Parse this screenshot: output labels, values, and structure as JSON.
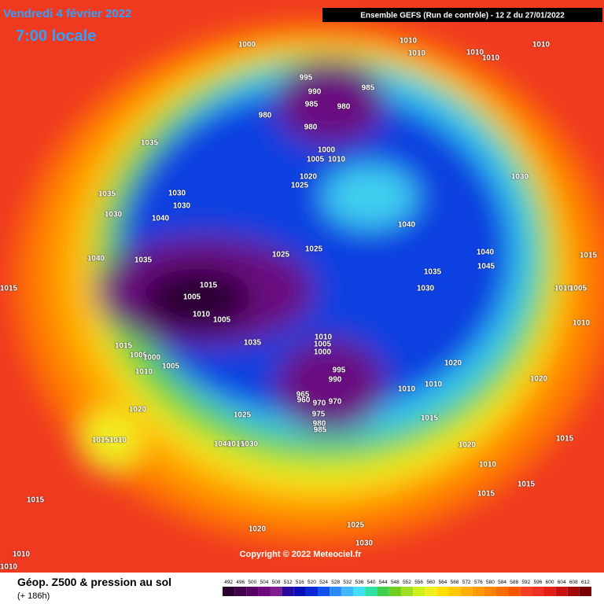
{
  "header": {
    "date": "Vendredi 4 février 2022",
    "time": "7:00 locale",
    "run": "Ensemble GEFS  (Run de contrôle)  -  12 Z du 27/01/2022"
  },
  "map": {
    "copyright": "Copyright © 2022 Meteociel.fr",
    "isobar_labels": [
      1000,
      1010,
      1010,
      1010,
      1010,
      1010,
      995,
      985,
      990,
      985,
      980,
      980,
      980,
      1000,
      1005,
      1010,
      1020,
      1025,
      1035,
      1035,
      1030,
      1030,
      1030,
      1040,
      1030,
      1040,
      1040,
      1045,
      1015,
      1025,
      1025,
      1035,
      1040,
      1015,
      1015,
      1005,
      1010,
      1005,
      1035,
      1030,
      1010,
      1005,
      1010,
      1035,
      1010,
      1005,
      1000,
      995,
      990,
      965,
      960,
      970,
      970,
      975,
      980,
      985,
      1015,
      1005,
      1000,
      1010,
      1005,
      1020,
      1020,
      1010,
      1010,
      1025,
      1015,
      1020,
      1015,
      1010,
      1040,
      1015,
      1030,
      1020,
      1015,
      1010,
      1015,
      1015,
      1015,
      1020,
      1025,
      1030,
      1010,
      1010
    ]
  },
  "legend": {
    "title": "Géop. Z500 & pression au sol",
    "lead": "(+ 186h)",
    "scale": [
      492,
      496,
      500,
      504,
      508,
      512,
      516,
      520,
      524,
      528,
      532,
      536,
      540,
      544,
      548,
      552,
      556,
      560,
      564,
      568,
      572,
      576,
      580,
      584,
      588,
      592,
      596,
      600,
      604,
      608,
      612
    ],
    "colors": [
      "#2b0030",
      "#40004a",
      "#560062",
      "#6c0a7c",
      "#7d1d90",
      "#2a0aa0",
      "#0a10b8",
      "#0a28d8",
      "#1050f0",
      "#2a8cff",
      "#40b8ff",
      "#40e0f0",
      "#30e0a0",
      "#40d050",
      "#70d020",
      "#a0e020",
      "#d0f020",
      "#f0f020",
      "#ffe000",
      "#ffc800",
      "#ffb000",
      "#ff9a00",
      "#ff8400",
      "#ff6c00",
      "#ff5400",
      "#f84020",
      "#f03020",
      "#e02018",
      "#c81010",
      "#a00808",
      "#780000"
    ]
  }
}
